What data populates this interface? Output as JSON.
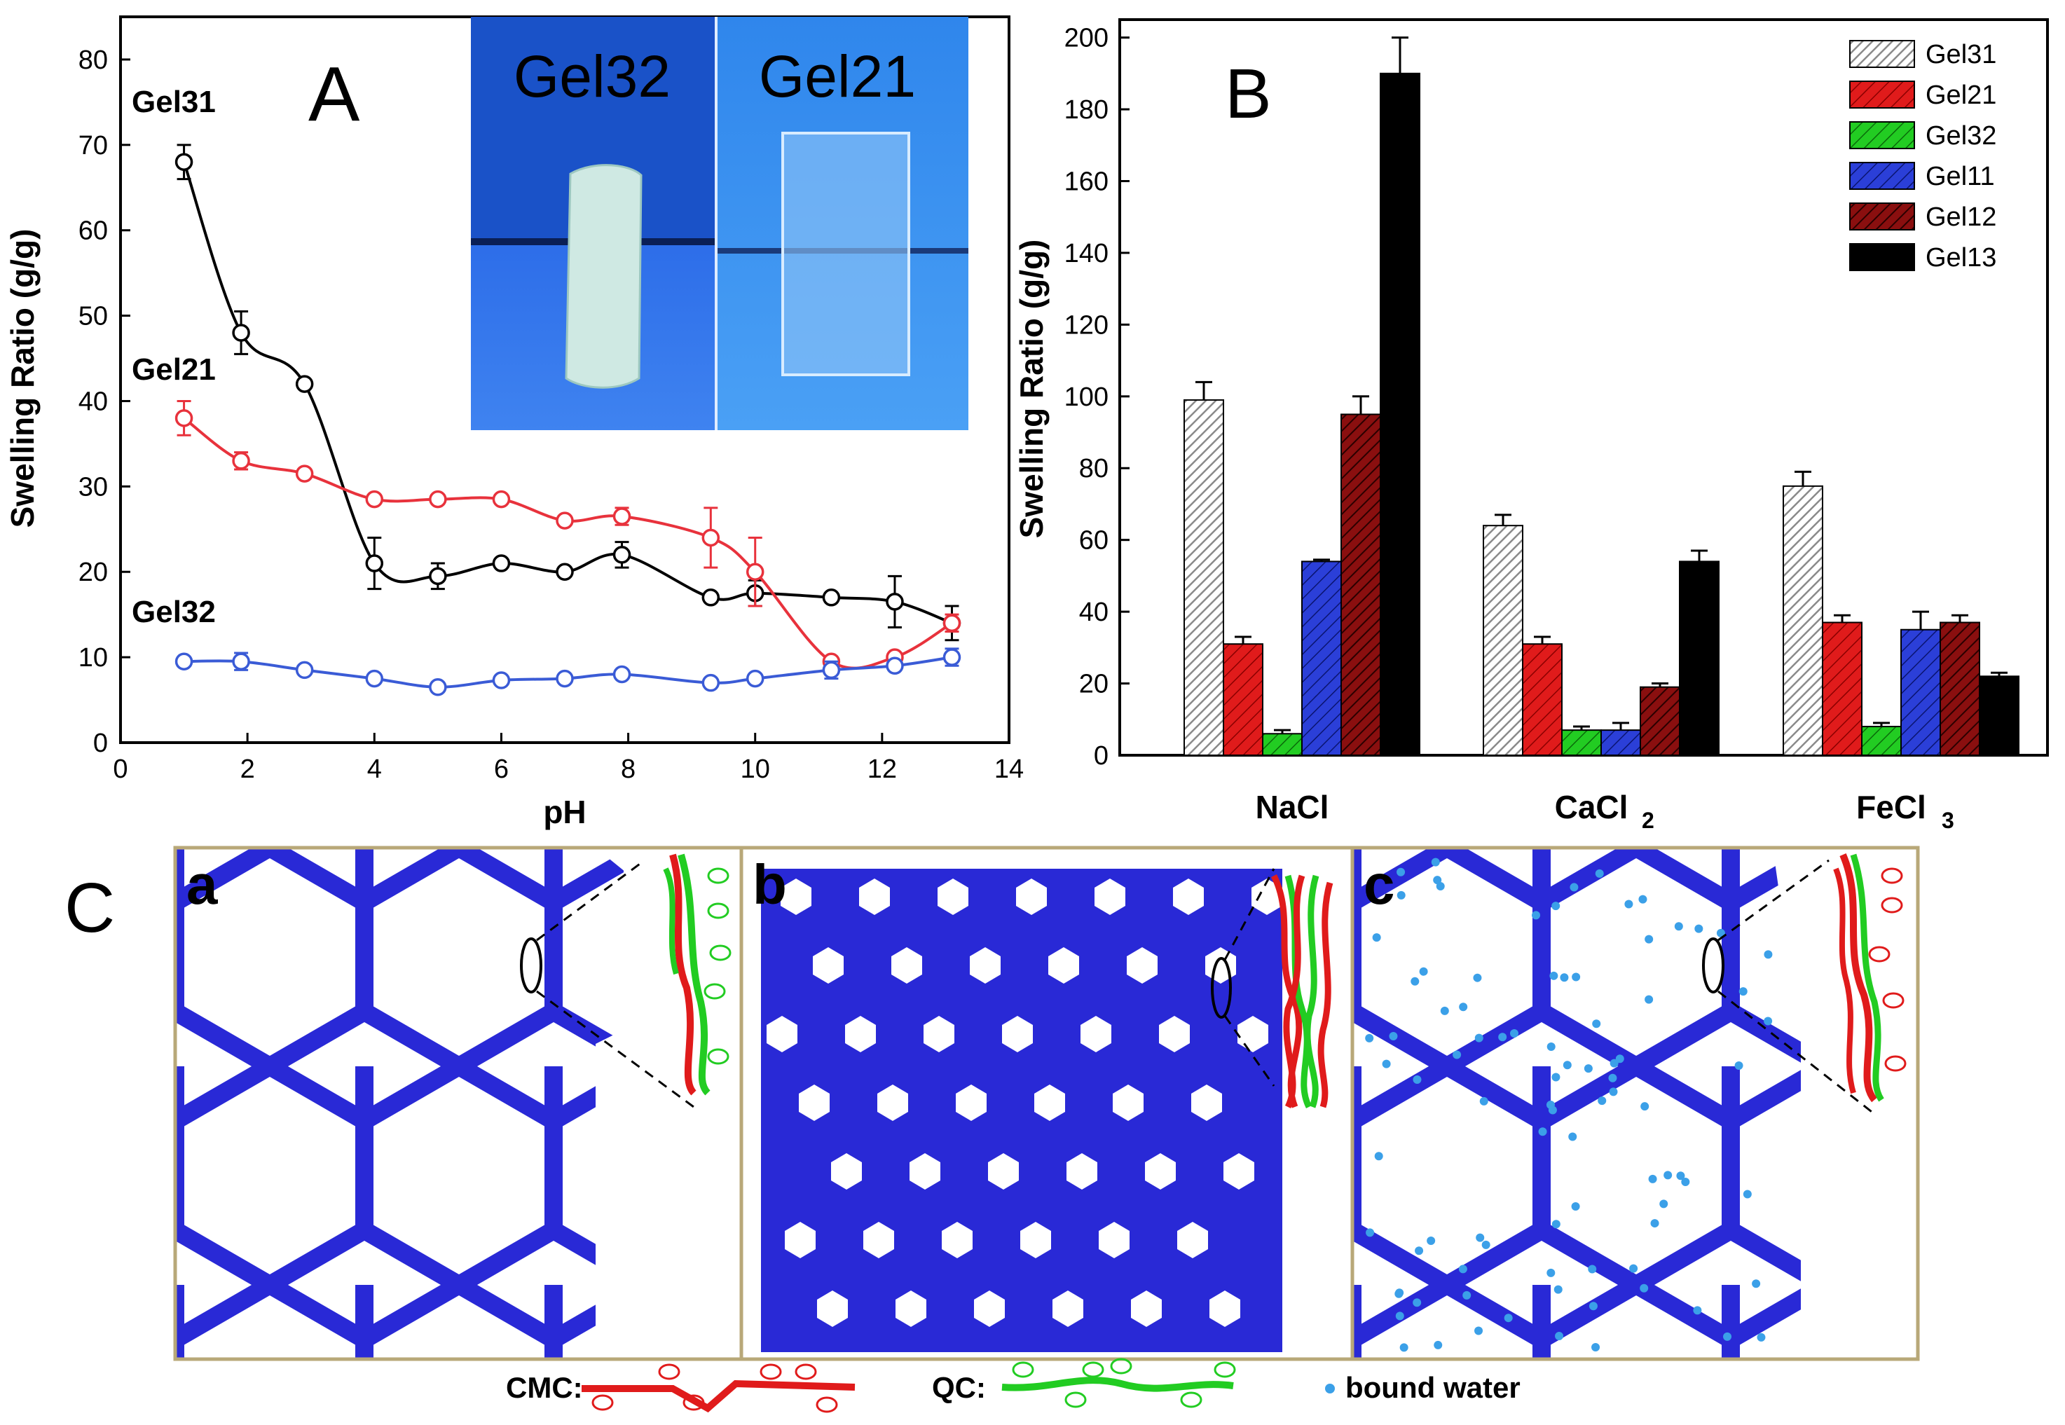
{
  "chart_data": [
    {
      "panel": "A",
      "type": "line",
      "panel_letter": "A",
      "xlabel": "pH",
      "ylabel": "Swelling Ratio (g/g)",
      "xlim": [
        0,
        14
      ],
      "ylim": [
        0,
        85
      ],
      "xticks": [
        0,
        2,
        4,
        6,
        8,
        10,
        12,
        14
      ],
      "yticks": [
        0,
        10,
        20,
        30,
        40,
        50,
        60,
        70,
        80
      ],
      "series": [
        {
          "name": "Gel31",
          "color": "#000000",
          "x": [
            1.0,
            1.9,
            2.9,
            4.0,
            5.0,
            6.0,
            7.0,
            7.9,
            9.3,
            10.0,
            11.2,
            12.2,
            13.1
          ],
          "y": [
            68,
            48,
            42,
            21,
            19.5,
            21,
            20,
            22,
            17,
            17.5,
            17,
            16.5,
            14
          ],
          "err": [
            2,
            2.5,
            0.5,
            3,
            1.5,
            0.5,
            0.5,
            1.5,
            0.5,
            1.5,
            0.5,
            3,
            2
          ]
        },
        {
          "name": "Gel21",
          "color": "#e8323c",
          "x": [
            1.0,
            1.9,
            2.9,
            4.0,
            5.0,
            6.0,
            7.0,
            7.9,
            9.3,
            10.0,
            11.2,
            12.2,
            13.1
          ],
          "y": [
            38,
            33,
            31.5,
            28.5,
            28.5,
            28.5,
            26,
            26.5,
            24,
            20,
            9.5,
            10,
            14
          ],
          "err": [
            2,
            1,
            0.5,
            0.5,
            0.5,
            0.5,
            0.5,
            1,
            3.5,
            4,
            0.5,
            0.5,
            1
          ]
        },
        {
          "name": "Gel32",
          "color": "#3a5bd6",
          "x": [
            1.0,
            1.9,
            2.9,
            4.0,
            5.0,
            6.0,
            7.0,
            7.9,
            9.3,
            10.0,
            11.2,
            12.2,
            13.1
          ],
          "y": [
            9.5,
            9.5,
            8.5,
            7.5,
            6.5,
            7.3,
            7.5,
            8,
            7,
            7.5,
            8.5,
            9,
            10
          ],
          "err": [
            0.5,
            1,
            0.5,
            0.5,
            0.5,
            0.5,
            0.5,
            0.5,
            0.5,
            0.5,
            1,
            0.5,
            1
          ]
        }
      ],
      "series_labels": [
        "Gel31",
        "Gel21",
        "Gel32"
      ],
      "inset_labels": [
        "Gel32",
        "Gel21"
      ]
    },
    {
      "panel": "B",
      "type": "bar",
      "panel_letter": "B",
      "ylabel": "Swelling Ratio (g/g)",
      "ylim": [
        0,
        205
      ],
      "yticks": [
        0,
        20,
        40,
        60,
        80,
        100,
        120,
        140,
        160,
        180,
        200
      ],
      "categories": [
        "NaCl",
        "CaCl",
        "FeCl"
      ],
      "category_subscripts": [
        "",
        "2",
        "3"
      ],
      "legend_position": "top-right",
      "series": [
        {
          "name": "Gel31",
          "color": "#d0d0d0",
          "values": [
            99,
            64,
            75
          ],
          "err": [
            5,
            3,
            4
          ]
        },
        {
          "name": "Gel21",
          "color": "#e01b1b",
          "values": [
            31,
            31,
            37
          ],
          "err": [
            2,
            2,
            2
          ]
        },
        {
          "name": "Gel32",
          "color": "#22cc22",
          "values": [
            6,
            7,
            8
          ],
          "err": [
            1,
            1,
            1
          ]
        },
        {
          "name": "Gel11",
          "color": "#2b3fd8",
          "values": [
            54,
            7,
            35
          ],
          "err": [
            0.5,
            2,
            5
          ]
        },
        {
          "name": "Gel12",
          "color": "#8a0f0f",
          "values": [
            95,
            19,
            37
          ],
          "err": [
            5,
            1,
            2
          ]
        },
        {
          "name": "Gel13",
          "color": "#000000",
          "values": [
            190,
            54,
            22
          ],
          "err": [
            10,
            3,
            1
          ]
        }
      ]
    }
  ],
  "panel_c": {
    "letter": "C",
    "sub_labels": [
      "a",
      "b",
      "c"
    ],
    "legend": {
      "cmc_label": "CMC:",
      "qc_label": "QC:",
      "water_label": "bound water"
    },
    "colors": {
      "network": "#2929d6",
      "cmc": "#e01b1b",
      "qc": "#22cc22",
      "water": "#3ba0e8",
      "frame": "#b8a878"
    }
  }
}
